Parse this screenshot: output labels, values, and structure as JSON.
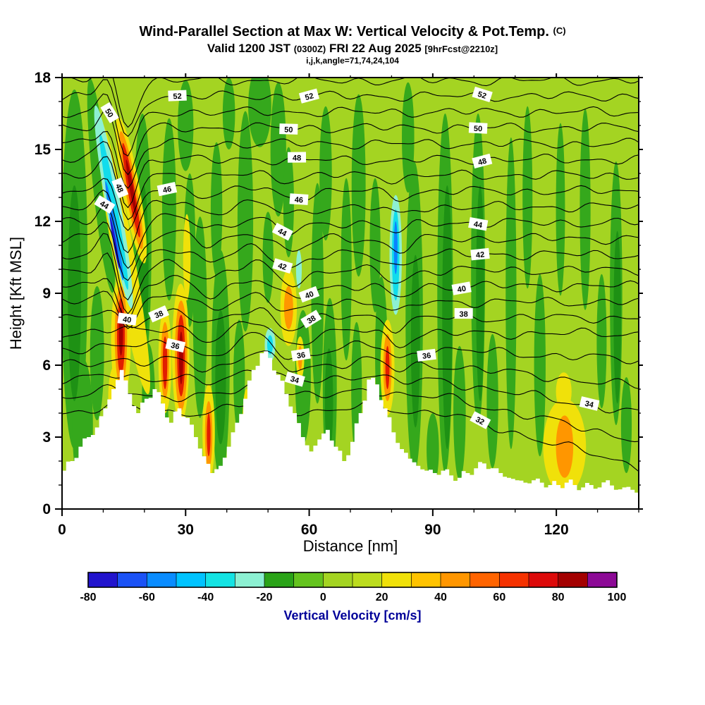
{
  "header": {
    "title_main": "Wind-Parallel Section at Max W: Vertical Velocity & Pot.Temp.",
    "title_unit": "(C)",
    "valid_prefix": "Valid 1200 JST",
    "valid_z": "(0300Z)",
    "valid_date": "FRI 22 Aug 2025",
    "valid_fcst": "[9hrFcst@2210z]",
    "grid_info": "i,j,k,angle=71,74,24,104"
  },
  "chart_data": {
    "type": "filled-contour-cross-section",
    "title": "Wind-Parallel Section at Max W: Vertical Velocity & Pot.Temp. (C)",
    "subtitle": "Valid 1200 JST (0300Z) FRI 22 Aug 2025 [9hrFcst@2210z]",
    "grid_info": "i,j,k,angle=71,74,24,104",
    "x_axis": {
      "label": "Distance [nm]",
      "ticks": [
        0,
        30,
        60,
        90,
        120
      ],
      "minor_step": 10,
      "range": [
        0,
        140
      ]
    },
    "y_axis": {
      "label": "Height [Kft MSL]",
      "ticks": [
        0,
        3,
        6,
        9,
        12,
        15,
        18
      ],
      "minor_step": 1,
      "range": [
        0,
        18
      ]
    },
    "colorbar": {
      "label": "Vertical Velocity [cm/s]",
      "tick_values": [
        -80,
        -60,
        -40,
        -20,
        0,
        20,
        40,
        60,
        80,
        100
      ],
      "range": [
        -80,
        100
      ],
      "segment_step": 10,
      "segment_colors": [
        "#2214cd",
        "#1b52f5",
        "#0a8cff",
        "#00c3ff",
        "#14e3e3",
        "#8cf0d2",
        "#2aa318",
        "#64c31e",
        "#a4d422",
        "#bcdc1e",
        "#f0e10a",
        "#ffc300",
        "#ff9600",
        "#ff6400",
        "#f53200",
        "#dc0a0a",
        "#a30000",
        "#8c0a96"
      ],
      "label_color": "#000099"
    },
    "contours": {
      "variable": "Potential Temperature",
      "unit": "C",
      "interval": 1,
      "levels_min": 32,
      "levels_max": 53,
      "labels": [
        {
          "level": 52,
          "x": [
            28,
            60,
            102
          ]
        },
        {
          "level": 50,
          "x": [
            11.5,
            55,
            101
          ]
        },
        {
          "level": 48,
          "x": [
            14,
            57,
            102
          ]
        },
        {
          "level": 46,
          "x": [
            25.5,
            57.5
          ]
        },
        {
          "level": 44,
          "x": [
            10.3,
            53.5,
            101
          ]
        },
        {
          "level": 42,
          "x": [
            53.5,
            101.5
          ]
        },
        {
          "level": 40,
          "x": [
            15.8,
            60,
            97
          ]
        },
        {
          "level": 38,
          "x": [
            23.5,
            60.5,
            97.5
          ]
        },
        {
          "level": 36,
          "x": [
            27.5,
            58,
            88.5
          ]
        },
        {
          "level": 34,
          "x": [
            56.5,
            128
          ]
        },
        {
          "level": 32,
          "x": [
            101.5
          ]
        }
      ]
    },
    "terrain": {
      "x_step_nm": 2,
      "heights_kft": [
        1.6,
        2.0,
        2.6,
        3.0,
        3.4,
        4.2,
        5.0,
        5.8,
        4.8,
        4.0,
        4.6,
        5.0,
        4.4,
        3.6,
        4.2,
        3.8,
        3.0,
        2.2,
        1.5,
        1.8,
        2.6,
        3.6,
        4.6,
        5.8,
        6.5,
        6.3,
        5.6,
        4.8,
        4.0,
        3.0,
        2.4,
        2.9,
        3.3,
        2.6,
        2.0,
        2.8,
        4.0,
        5.4,
        5.2,
        4.2,
        3.2,
        2.5,
        2.1,
        1.8,
        1.6,
        1.5,
        1.6,
        1.4,
        1.3,
        1.5,
        1.7,
        1.9,
        1.7,
        1.5,
        1.3,
        1.2,
        1.1,
        1.2,
        1.1,
        1.0,
        1.0,
        1.1,
        1.0,
        0.9,
        1.0,
        0.9,
        1.2,
        0.8,
        0.9,
        0.8,
        0.8
      ]
    },
    "features": {
      "palette": {
        "background": "#a4d422",
        "green": "#35a81c",
        "deep_green": "#1e9114",
        "yellow": "#f0e10a",
        "orange": "#ff9600",
        "red": "#e11e00",
        "dark_red": "#a30000",
        "light_cyan": "#8df0d2",
        "cyan": "#12dcec",
        "blue": "#0a82ff",
        "dark_blue": "#2214cd"
      },
      "order": [
        "green",
        "deep_green",
        "yellow",
        "orange",
        "red",
        "dark_red",
        "light_cyan",
        "cyan",
        "blue",
        "dark_blue"
      ],
      "shapes": {
        "green": [
          [
            3,
            10,
            3.2,
            7.5,
            0
          ],
          [
            5,
            3.5,
            2.5,
            2.8,
            0
          ],
          [
            9.5,
            13.5,
            2.0,
            4.5,
            -6
          ],
          [
            8.5,
            6.5,
            1.7,
            2.8,
            0
          ],
          [
            19.5,
            11,
            2.2,
            5.5,
            0
          ],
          [
            21,
            4.5,
            1.6,
            2.4,
            0
          ],
          [
            26,
            12.5,
            1.7,
            3.8,
            0
          ],
          [
            24.5,
            3.2,
            1.4,
            2.0,
            0
          ],
          [
            31,
            10.8,
            1.4,
            3.2,
            0
          ],
          [
            33.5,
            8,
            1.7,
            4.2,
            0
          ],
          [
            38.5,
            6,
            2.2,
            4.8,
            0
          ],
          [
            37.5,
            12.5,
            1.4,
            2.8,
            0
          ],
          [
            44.5,
            12,
            1.9,
            4.6,
            0
          ],
          [
            43,
            5.5,
            1.4,
            2.4,
            0
          ],
          [
            52.5,
            15,
            1.9,
            2.8,
            0
          ],
          [
            50,
            10.5,
            1.3,
            1.9,
            0
          ],
          [
            58.5,
            5.5,
            1.9,
            2.8,
            0
          ],
          [
            62,
            9,
            1.5,
            4.6,
            0
          ],
          [
            65,
            5,
            1.7,
            3.8,
            0
          ],
          [
            64,
            14,
            1.5,
            2.8,
            0
          ],
          [
            69,
            10,
            1.3,
            3.8,
            0
          ],
          [
            72,
            13.5,
            1.7,
            3.8,
            0
          ],
          [
            71.5,
            5,
            1.3,
            2.8,
            0
          ],
          [
            77.5,
            6.5,
            1.5,
            3.2,
            0
          ],
          [
            76,
            11,
            1.3,
            2.8,
            0
          ],
          [
            85.5,
            8,
            2.1,
            6.5,
            0
          ],
          [
            84,
            15.5,
            1.5,
            2.3,
            0
          ],
          [
            93,
            9,
            1.9,
            7.5,
            0
          ],
          [
            96.5,
            4,
            1.5,
            2.8,
            0
          ],
          [
            101,
            10,
            1.7,
            6.5,
            0
          ],
          [
            104.5,
            4.5,
            1.4,
            2.8,
            0
          ],
          [
            109,
            9,
            1.3,
            6.5,
            0
          ],
          [
            113,
            13,
            1.2,
            3.8,
            0
          ],
          [
            116,
            6,
            1.4,
            3.8,
            0
          ],
          [
            121,
            12.5,
            1.1,
            3.6,
            0
          ],
          [
            127,
            12.5,
            1.3,
            4.2,
            0
          ],
          [
            131,
            7,
            1.2,
            2.8,
            0
          ],
          [
            134.5,
            9,
            1.5,
            5.5,
            0
          ],
          [
            137,
            3.5,
            1.3,
            2.0,
            0
          ],
          [
            48,
            16.8,
            2.8,
            1.7,
            0
          ],
          [
            30,
            16,
            1.9,
            1.9,
            0
          ],
          [
            55,
            12.8,
            1.3,
            2.3,
            0
          ],
          [
            40.5,
            16.5,
            1.5,
            1.5,
            0
          ],
          [
            90,
            2.5,
            1.5,
            1.5,
            0
          ]
        ],
        "deep_green": [
          [
            3,
            9,
            1.6,
            4.5,
            0
          ],
          [
            19.8,
            10,
            1.2,
            3.5,
            0
          ],
          [
            38.5,
            5.5,
            1.3,
            2.8,
            0
          ],
          [
            64.8,
            4.5,
            1.0,
            2.2,
            0
          ],
          [
            85.8,
            7,
            1.1,
            3.6,
            0
          ],
          [
            93.5,
            8,
            1.2,
            5.5,
            0
          ],
          [
            101.5,
            9,
            1.0,
            4.5,
            0
          ],
          [
            134.8,
            8,
            0.9,
            3.6,
            0
          ]
        ],
        "yellow": [
          [
            15,
            10.5,
            2.6,
            5.8,
            -10
          ],
          [
            14.3,
            7.1,
            2.4,
            2.7,
            0
          ],
          [
            12.5,
            4.6,
            1.3,
            1.3,
            0
          ],
          [
            25,
            6.2,
            1.6,
            2.2,
            0
          ],
          [
            28.8,
            6.5,
            2.1,
            2.9,
            0
          ],
          [
            30.3,
            10.5,
            0.9,
            1.8,
            0
          ],
          [
            35.6,
            3.2,
            1.5,
            2.0,
            0
          ],
          [
            44.8,
            3.6,
            1.0,
            1.4,
            0
          ],
          [
            55,
            8.4,
            2.0,
            1.6,
            0
          ],
          [
            57.8,
            6.3,
            1.0,
            0.9,
            0
          ],
          [
            79,
            5.9,
            1.7,
            2.0,
            0
          ],
          [
            122,
            2.6,
            5.2,
            2.0,
            0
          ],
          [
            121.8,
            4.9,
            1.9,
            0.8,
            0
          ],
          [
            16.8,
            13.3,
            2.1,
            3.1,
            -10
          ]
        ],
        "orange": [
          [
            16.8,
            13.3,
            1.4,
            2.5,
            -10
          ],
          [
            14.3,
            7.2,
            1.5,
            2.1,
            0
          ],
          [
            25,
            6.2,
            1.0,
            1.6,
            0
          ],
          [
            28.9,
            6.4,
            1.5,
            2.3,
            0
          ],
          [
            35.6,
            3.1,
            0.9,
            1.4,
            0
          ],
          [
            55,
            8.4,
            1.1,
            0.9,
            0
          ],
          [
            57.8,
            6.3,
            0.5,
            0.5,
            0
          ],
          [
            79,
            5.9,
            1.0,
            1.4,
            0
          ],
          [
            122,
            2.6,
            2.1,
            1.3,
            0
          ]
        ],
        "red": [
          [
            16.8,
            13.3,
            0.85,
            2.0,
            -10
          ],
          [
            14.3,
            7.2,
            0.95,
            1.6,
            0
          ],
          [
            25,
            6.1,
            0.55,
            1.1,
            0
          ],
          [
            28.9,
            6.4,
            0.95,
            1.7,
            0
          ],
          [
            35.6,
            3.1,
            0.45,
            0.9,
            0
          ],
          [
            79,
            5.9,
            0.5,
            0.9,
            0
          ]
        ],
        "dark_red": [
          [
            16.8,
            13.4,
            0.45,
            1.2,
            -10
          ],
          [
            14.3,
            7.4,
            0.5,
            1.0,
            0
          ],
          [
            28.9,
            6.3,
            0.5,
            1.1,
            0
          ]
        ],
        "light_cyan": [
          [
            12.5,
            12.6,
            1.8,
            4.3,
            -10
          ],
          [
            81,
            10.6,
            1.5,
            2.5,
            0
          ],
          [
            50.5,
            6.85,
            1.3,
            0.7,
            0
          ],
          [
            57.5,
            10,
            0.7,
            0.8,
            0
          ]
        ],
        "cyan": [
          [
            12.6,
            12.4,
            1.0,
            3.3,
            -10
          ],
          [
            81,
            10.6,
            0.9,
            1.9,
            0
          ],
          [
            50.5,
            6.85,
            0.7,
            0.4,
            0
          ]
        ],
        "blue": [
          [
            12.7,
            11.6,
            0.6,
            2.1,
            -10
          ],
          [
            81,
            10.9,
            0.45,
            1.1,
            0
          ]
        ],
        "dark_blue": [
          [
            12.8,
            11.1,
            0.34,
            1.1,
            -10
          ]
        ]
      }
    }
  }
}
